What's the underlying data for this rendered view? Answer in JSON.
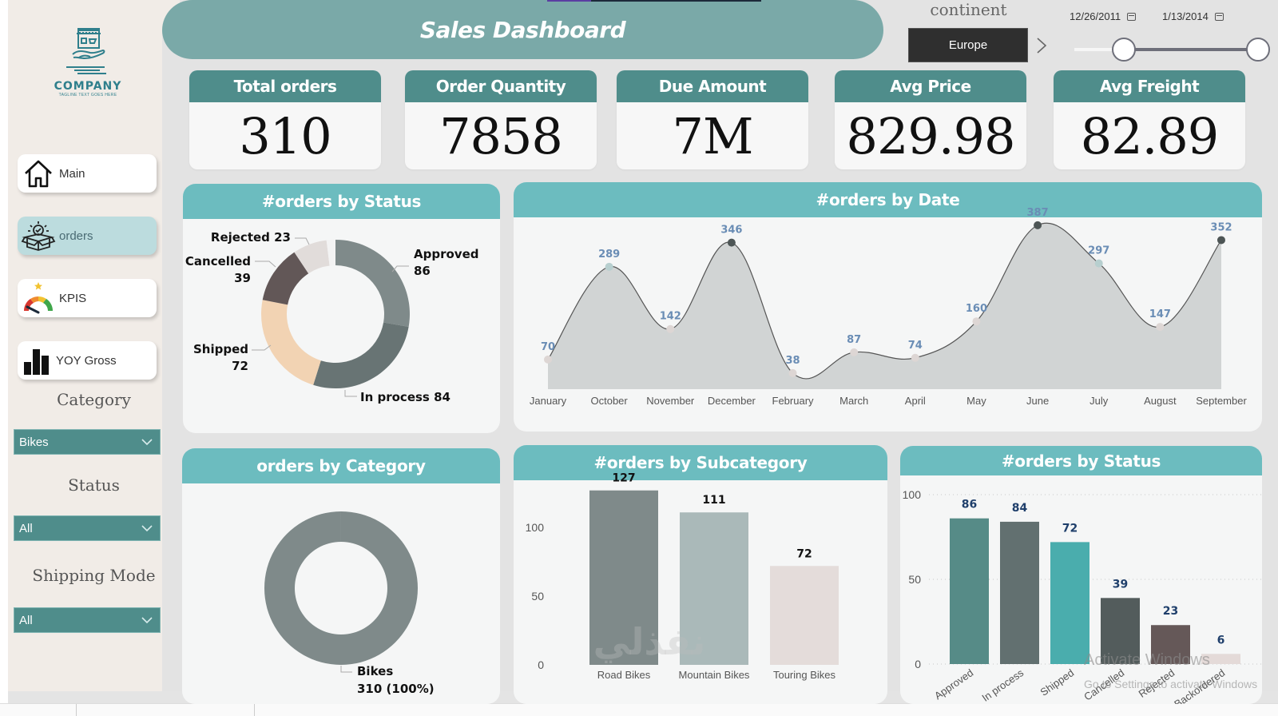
{
  "app": {
    "title": "Sales Dashboard",
    "logo": {
      "name": "COMPANY",
      "tagline": "TAGLINE TEXT GOES HERE"
    }
  },
  "sidebar": {
    "nav": [
      {
        "label": "Main",
        "icon": "home-icon",
        "active": false
      },
      {
        "label": "orders",
        "icon": "box-check-icon",
        "active": true
      },
      {
        "label": "KPIS",
        "icon": "gauge-icon",
        "active": false
      },
      {
        "label": "YOY Gross",
        "icon": "bar-chart-icon",
        "active": false
      }
    ],
    "filters": [
      {
        "title": "Category",
        "value": "Bikes"
      },
      {
        "title": "Status",
        "value": "All"
      },
      {
        "title": "Shipping Mode",
        "value": "All"
      }
    ]
  },
  "header": {
    "continent": {
      "title": "continent",
      "value": "Europe"
    },
    "date_range": {
      "start": "12/26/2011",
      "end": "1/13/2014",
      "start_fraction": 0.27,
      "end_fraction": 1.0
    }
  },
  "kpis": [
    {
      "label": "Total orders",
      "value": "310"
    },
    {
      "label": "Order Quantity",
      "value": "7858"
    },
    {
      "label": "Due Amount",
      "value": "7M"
    },
    {
      "label": "Avg Price",
      "value": "829.98"
    },
    {
      "label": "Avg Freight",
      "value": "82.89"
    }
  ],
  "colors": {
    "teal_dark": "#4f8d8b",
    "teal_header": "#6cbcbf",
    "banner": "#7aa9a8",
    "label_blue": "#6a8db5",
    "bar_label_blue": "#1f3f6b"
  },
  "chart_data": [
    {
      "id": "status-donut",
      "type": "pie",
      "title": "#orders by Status",
      "donut": true,
      "slices": [
        {
          "label": "Approved",
          "value": 86,
          "color": "#7f8a8a"
        },
        {
          "label": "In process",
          "value": 84,
          "color": "#687474"
        },
        {
          "label": "Shipped",
          "value": 72,
          "color": "#f2d3b3"
        },
        {
          "label": "Cancelled",
          "value": 39,
          "color": "#625757"
        },
        {
          "label": "Rejected",
          "value": 23,
          "color": "#e1dcda"
        },
        {
          "label": "Backordered",
          "value": 6,
          "color": "#f3f3f3"
        }
      ],
      "labels": [
        {
          "text": "Approved",
          "value": "86"
        },
        {
          "text": "In process 84"
        },
        {
          "text": "Shipped",
          "value": "72"
        },
        {
          "text": "Cancelled",
          "value": "39"
        },
        {
          "text": "Rejected 23"
        }
      ]
    },
    {
      "id": "date-area",
      "type": "area",
      "title": "#orders by Date",
      "categories": [
        "January",
        "October",
        "November",
        "December",
        "February",
        "March",
        "April",
        "May",
        "June",
        "July",
        "August",
        "September"
      ],
      "values": [
        70,
        289,
        142,
        346,
        38,
        87,
        74,
        160,
        387,
        297,
        147,
        352
      ],
      "ylim": [
        0,
        400
      ],
      "grid": false
    },
    {
      "id": "category-donut",
      "type": "pie",
      "title": "orders by Category",
      "donut": true,
      "slices": [
        {
          "label": "Bikes",
          "value": 310,
          "percent": "100%",
          "color": "#7f8a8a"
        }
      ],
      "label_text": "Bikes",
      "label_value": "310 (100%)"
    },
    {
      "id": "subcategory-bar",
      "type": "bar",
      "title": "#orders by Subcategory",
      "categories": [
        "Road Bikes",
        "Mountain Bikes",
        "Touring Bikes"
      ],
      "values": [
        127,
        111,
        72
      ],
      "colors": [
        "#7f8a8a",
        "#aab9b9",
        "#e4dcda"
      ],
      "yticks": [
        0,
        50,
        100
      ],
      "ylim": [
        0,
        135
      ]
    },
    {
      "id": "status-bar",
      "type": "bar",
      "title": "#orders by Status",
      "categories": [
        "Approved",
        "In process",
        "Shipped",
        "Cancelled",
        "Rejected",
        "Backordered"
      ],
      "values": [
        86,
        84,
        72,
        39,
        23,
        6
      ],
      "colors": [
        "#568b87",
        "#627070",
        "#4aadad",
        "#535c5c",
        "#655858",
        "#e4dad8"
      ],
      "yticks": [
        0,
        50,
        100
      ],
      "ylim": [
        0,
        100
      ],
      "grid": true
    }
  ],
  "overlays": {
    "activate_windows": "Activate Windows",
    "activate_hint": "Go to Settings to activate Windows"
  }
}
